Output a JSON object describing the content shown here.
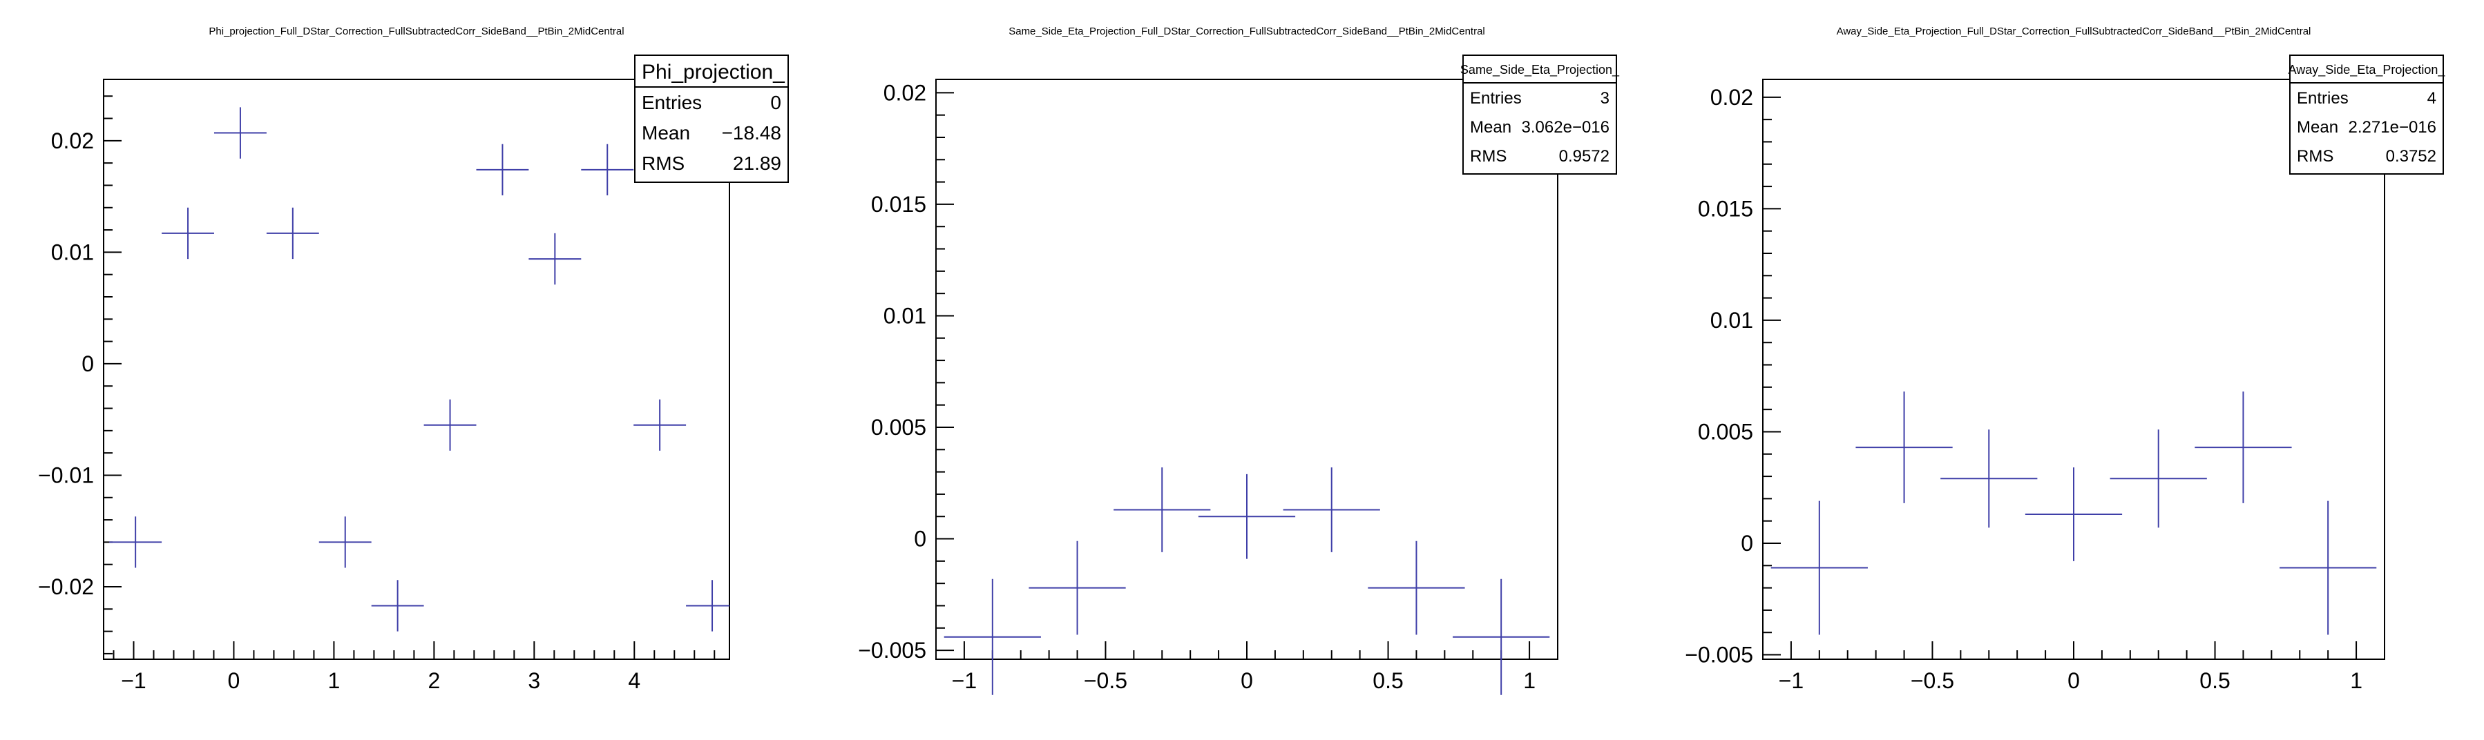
{
  "chart_data": [
    {
      "type": "scatter",
      "title": "Phi_projection_Full_DStar_Correction_FullSubtractedCorr_SideBand__PtBin_2MidCentral",
      "xlabel": "",
      "ylabel": "",
      "xlim": [
        -1.3,
        4.95
      ],
      "ylim": [
        -0.0265,
        0.0255
      ],
      "xticks": [
        -1,
        0,
        1,
        2,
        3,
        4
      ],
      "xtick_labels": [
        "−1",
        "0",
        "1",
        "2",
        "3",
        "4"
      ],
      "yticks": [
        -0.02,
        -0.01,
        0,
        0.01,
        0.02
      ],
      "ytick_labels": [
        "−0.02",
        "−0.01",
        "0",
        "0.01",
        "0.02"
      ],
      "bin_half_width": 0.2618,
      "points": [
        {
          "x": -0.9817,
          "y": -0.016,
          "yerr": 0.0023
        },
        {
          "x": -0.4581,
          "y": 0.0117,
          "yerr": 0.0023
        },
        {
          "x": 0.0654,
          "y": 0.0207,
          "yerr": 0.0023
        },
        {
          "x": 0.589,
          "y": 0.0117,
          "yerr": 0.0023
        },
        {
          "x": 1.1126,
          "y": -0.016,
          "yerr": 0.0023
        },
        {
          "x": 1.6362,
          "y": -0.0217,
          "yerr": 0.0023
        },
        {
          "x": 2.1598,
          "y": -0.0055,
          "yerr": 0.0023
        },
        {
          "x": 2.6834,
          "y": 0.0174,
          "yerr": 0.0023
        },
        {
          "x": 3.207,
          "y": 0.0094,
          "yerr": 0.0023
        },
        {
          "x": 3.7306,
          "y": 0.0174,
          "yerr": 0.0023
        },
        {
          "x": 4.2542,
          "y": -0.0055,
          "yerr": 0.0023
        },
        {
          "x": 4.7778,
          "y": -0.0217,
          "yerr": 0.0023
        }
      ],
      "stats": {
        "name": "Phi_projection_",
        "rows": [
          {
            "label": "Entries",
            "value": "0"
          },
          {
            "label": "Mean",
            "value": "−18.48"
          },
          {
            "label": "RMS",
            "value": "21.89"
          }
        ]
      }
    },
    {
      "type": "scatter",
      "title": "Same_Side_Eta_Projection_Full_DStar_Correction_FullSubtractedCorr_SideBand__PtBin_2MidCentral",
      "xlabel": "",
      "ylabel": "",
      "xlim": [
        -1.1,
        1.1
      ],
      "ylim": [
        -0.0054,
        0.0206
      ],
      "xticks": [
        -1,
        -0.5,
        0,
        0.5,
        1
      ],
      "xtick_labels": [
        "−1",
        "−0.5",
        "0",
        "0.5",
        "1"
      ],
      "yticks": [
        -0.005,
        0,
        0.005,
        0.01,
        0.015,
        0.02
      ],
      "ytick_labels": [
        "−0.005",
        "0",
        "0.005",
        "0.01",
        "0.015",
        "0.02"
      ],
      "bin_half_width": 0.1714,
      "points": [
        {
          "x": -0.9,
          "y": -0.0044,
          "yerr": 0.0026
        },
        {
          "x": -0.6,
          "y": -0.0022,
          "yerr": 0.0021
        },
        {
          "x": -0.3,
          "y": 0.0013,
          "yerr": 0.0019
        },
        {
          "x": 0.0,
          "y": 0.001,
          "yerr": 0.0019
        },
        {
          "x": 0.3,
          "y": 0.0013,
          "yerr": 0.0019
        },
        {
          "x": 0.6,
          "y": -0.0022,
          "yerr": 0.0021
        },
        {
          "x": 0.9,
          "y": -0.0044,
          "yerr": 0.0026
        }
      ],
      "stats": {
        "name": "Same_Side_Eta_Projection_",
        "rows": [
          {
            "label": "Entries",
            "value": "3"
          },
          {
            "label": "Mean",
            "value": "3.062e−016"
          },
          {
            "label": "RMS",
            "value": "0.9572"
          }
        ]
      }
    },
    {
      "type": "scatter",
      "title": "Away_Side_Eta_Projection_Full_DStar_Correction_FullSubtractedCorr_SideBand__PtBin_2MidCentral",
      "xlabel": "",
      "ylabel": "",
      "xlim": [
        -1.1,
        1.1
      ],
      "ylim": [
        -0.0052,
        0.0208
      ],
      "xticks": [
        -1,
        -0.5,
        0,
        0.5,
        1
      ],
      "xtick_labels": [
        "−1",
        "−0.5",
        "0",
        "0.5",
        "1"
      ],
      "yticks": [
        -0.005,
        0,
        0.005,
        0.01,
        0.015,
        0.02
      ],
      "ytick_labels": [
        "−0.005",
        "0",
        "0.005",
        "0.01",
        "0.015",
        "0.02"
      ],
      "bin_half_width": 0.1714,
      "points": [
        {
          "x": -0.9,
          "y": -0.0011,
          "yerr": 0.003
        },
        {
          "x": -0.6,
          "y": 0.0043,
          "yerr": 0.0025
        },
        {
          "x": -0.3,
          "y": 0.0029,
          "yerr": 0.0022
        },
        {
          "x": 0.0,
          "y": 0.0013,
          "yerr": 0.0021
        },
        {
          "x": 0.3,
          "y": 0.0029,
          "yerr": 0.0022
        },
        {
          "x": 0.6,
          "y": 0.0043,
          "yerr": 0.0025
        },
        {
          "x": 0.9,
          "y": -0.0011,
          "yerr": 0.003
        }
      ],
      "stats": {
        "name": "Away_Side_Eta_Projection_",
        "rows": [
          {
            "label": "Entries",
            "value": "4"
          },
          {
            "label": "Mean",
            "value": "2.271e−016"
          },
          {
            "label": "RMS",
            "value": "0.3752"
          }
        ]
      }
    }
  ],
  "colors": {
    "marker": "#3f3fa8",
    "frame": "#000000",
    "background": "#ffffff"
  }
}
